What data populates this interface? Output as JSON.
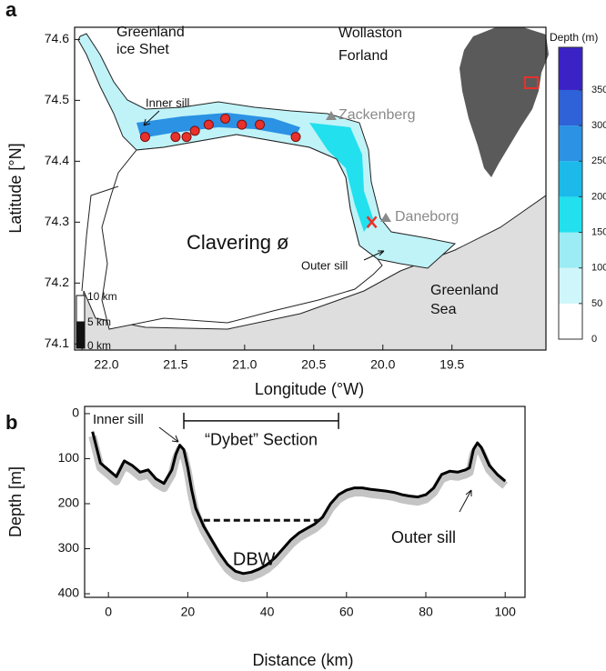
{
  "chart_data": [
    {
      "type": "map",
      "panel_label": "a",
      "xlabel": "Longitude (°W)",
      "ylabel": "Latitude [°N]",
      "xlim": [
        22.23,
        18.82
      ],
      "ylim": [
        74.09,
        74.62
      ],
      "xticks": [
        {
          "value": 22,
          "label": "22.0"
        },
        21.5,
        {
          "value": 21,
          "label": "21.0"
        },
        20.5,
        {
          "value": 20,
          "label": "20.0"
        },
        19.5
      ],
      "yticks": [
        74.1,
        74.2,
        74.3,
        74.4,
        74.5,
        74.6
      ],
      "stations": {
        "color": "#e8312a",
        "x": [
          21.72,
          21.5,
          21.42,
          21.36,
          21.26,
          21.14,
          21.02,
          20.89,
          20.63
        ],
        "y": [
          74.44,
          74.44,
          74.44,
          74.45,
          74.46,
          74.47,
          74.46,
          74.46,
          74.44
        ]
      },
      "mooring": {
        "color": "#e8312a",
        "x": 20.08,
        "y": 74.3
      },
      "places": [
        {
          "lines": [
            "Greenland",
            "ice Shet"
          ]
        },
        {
          "lines": [
            "Wollaston",
            "Forland"
          ]
        },
        {
          "lines": [
            "Zackenberg"
          ]
        },
        {
          "lines": [
            "Daneborg"
          ]
        },
        {
          "lines": [
            "Clavering ø"
          ]
        },
        {
          "lines": [
            "Greenland",
            "Sea"
          ]
        },
        {
          "lines": [
            "Inner sill"
          ]
        },
        {
          "lines": [
            "Outer sill"
          ]
        }
      ],
      "scale_bar": [
        "10 km",
        "5 km",
        "0 km"
      ],
      "colorbar": {
        "title": "Depth (m)",
        "lim": [
          0,
          410
        ],
        "ticks": [
          0,
          50,
          100,
          150,
          200,
          250,
          300,
          350
        ],
        "bins": [
          0,
          50,
          100,
          150,
          200,
          250,
          300,
          350,
          410
        ],
        "colors": [
          "#ffffff",
          "#cff6fa",
          "#9becf4",
          "#22e0ee",
          "#1bbaea",
          "#2b92e4",
          "#2f62d8",
          "#3a22c6"
        ]
      }
    },
    {
      "type": "line",
      "panel_label": "b",
      "xlabel": "Distance (km)",
      "ylabel": "Depth [m]",
      "xlim": [
        -6,
        105
      ],
      "ylim": [
        408,
        -16
      ],
      "xticks": [
        0,
        20,
        40,
        60,
        80,
        100
      ],
      "yticks": [
        0,
        100,
        200,
        300,
        400
      ],
      "color": "#000000",
      "shadow_color": "#c4c4c4",
      "x": [
        -4,
        -2,
        0,
        2,
        4,
        6,
        8,
        10,
        12,
        14,
        16,
        17,
        18,
        19,
        20,
        21,
        22,
        24,
        26,
        28,
        30,
        32,
        34,
        36,
        38,
        40,
        42,
        44,
        46,
        48,
        50,
        52,
        54,
        56,
        58,
        60,
        62,
        64,
        66,
        68,
        70,
        72,
        74,
        76,
        78,
        80,
        82,
        84,
        86,
        88,
        90,
        91,
        92,
        93,
        94,
        96,
        98,
        100
      ],
      "values": [
        40,
        110,
        125,
        140,
        105,
        115,
        130,
        125,
        145,
        155,
        125,
        90,
        70,
        80,
        120,
        170,
        210,
        250,
        280,
        310,
        335,
        350,
        355,
        352,
        345,
        335,
        320,
        300,
        280,
        265,
        255,
        245,
        230,
        200,
        180,
        170,
        165,
        165,
        168,
        170,
        172,
        175,
        180,
        183,
        185,
        180,
        165,
        135,
        128,
        130,
        125,
        120,
        80,
        65,
        75,
        115,
        135,
        150
      ],
      "annotations": {
        "inner_sill": "Inner sill",
        "outer_sill": "Outer sill",
        "section": {
          "label": "“Dybet” Section",
          "x": [
            19,
            58
          ],
          "y": 16
        },
        "dbw": {
          "label": "DBW",
          "x": [
            24,
            54
          ],
          "y": 237
        }
      }
    }
  ]
}
